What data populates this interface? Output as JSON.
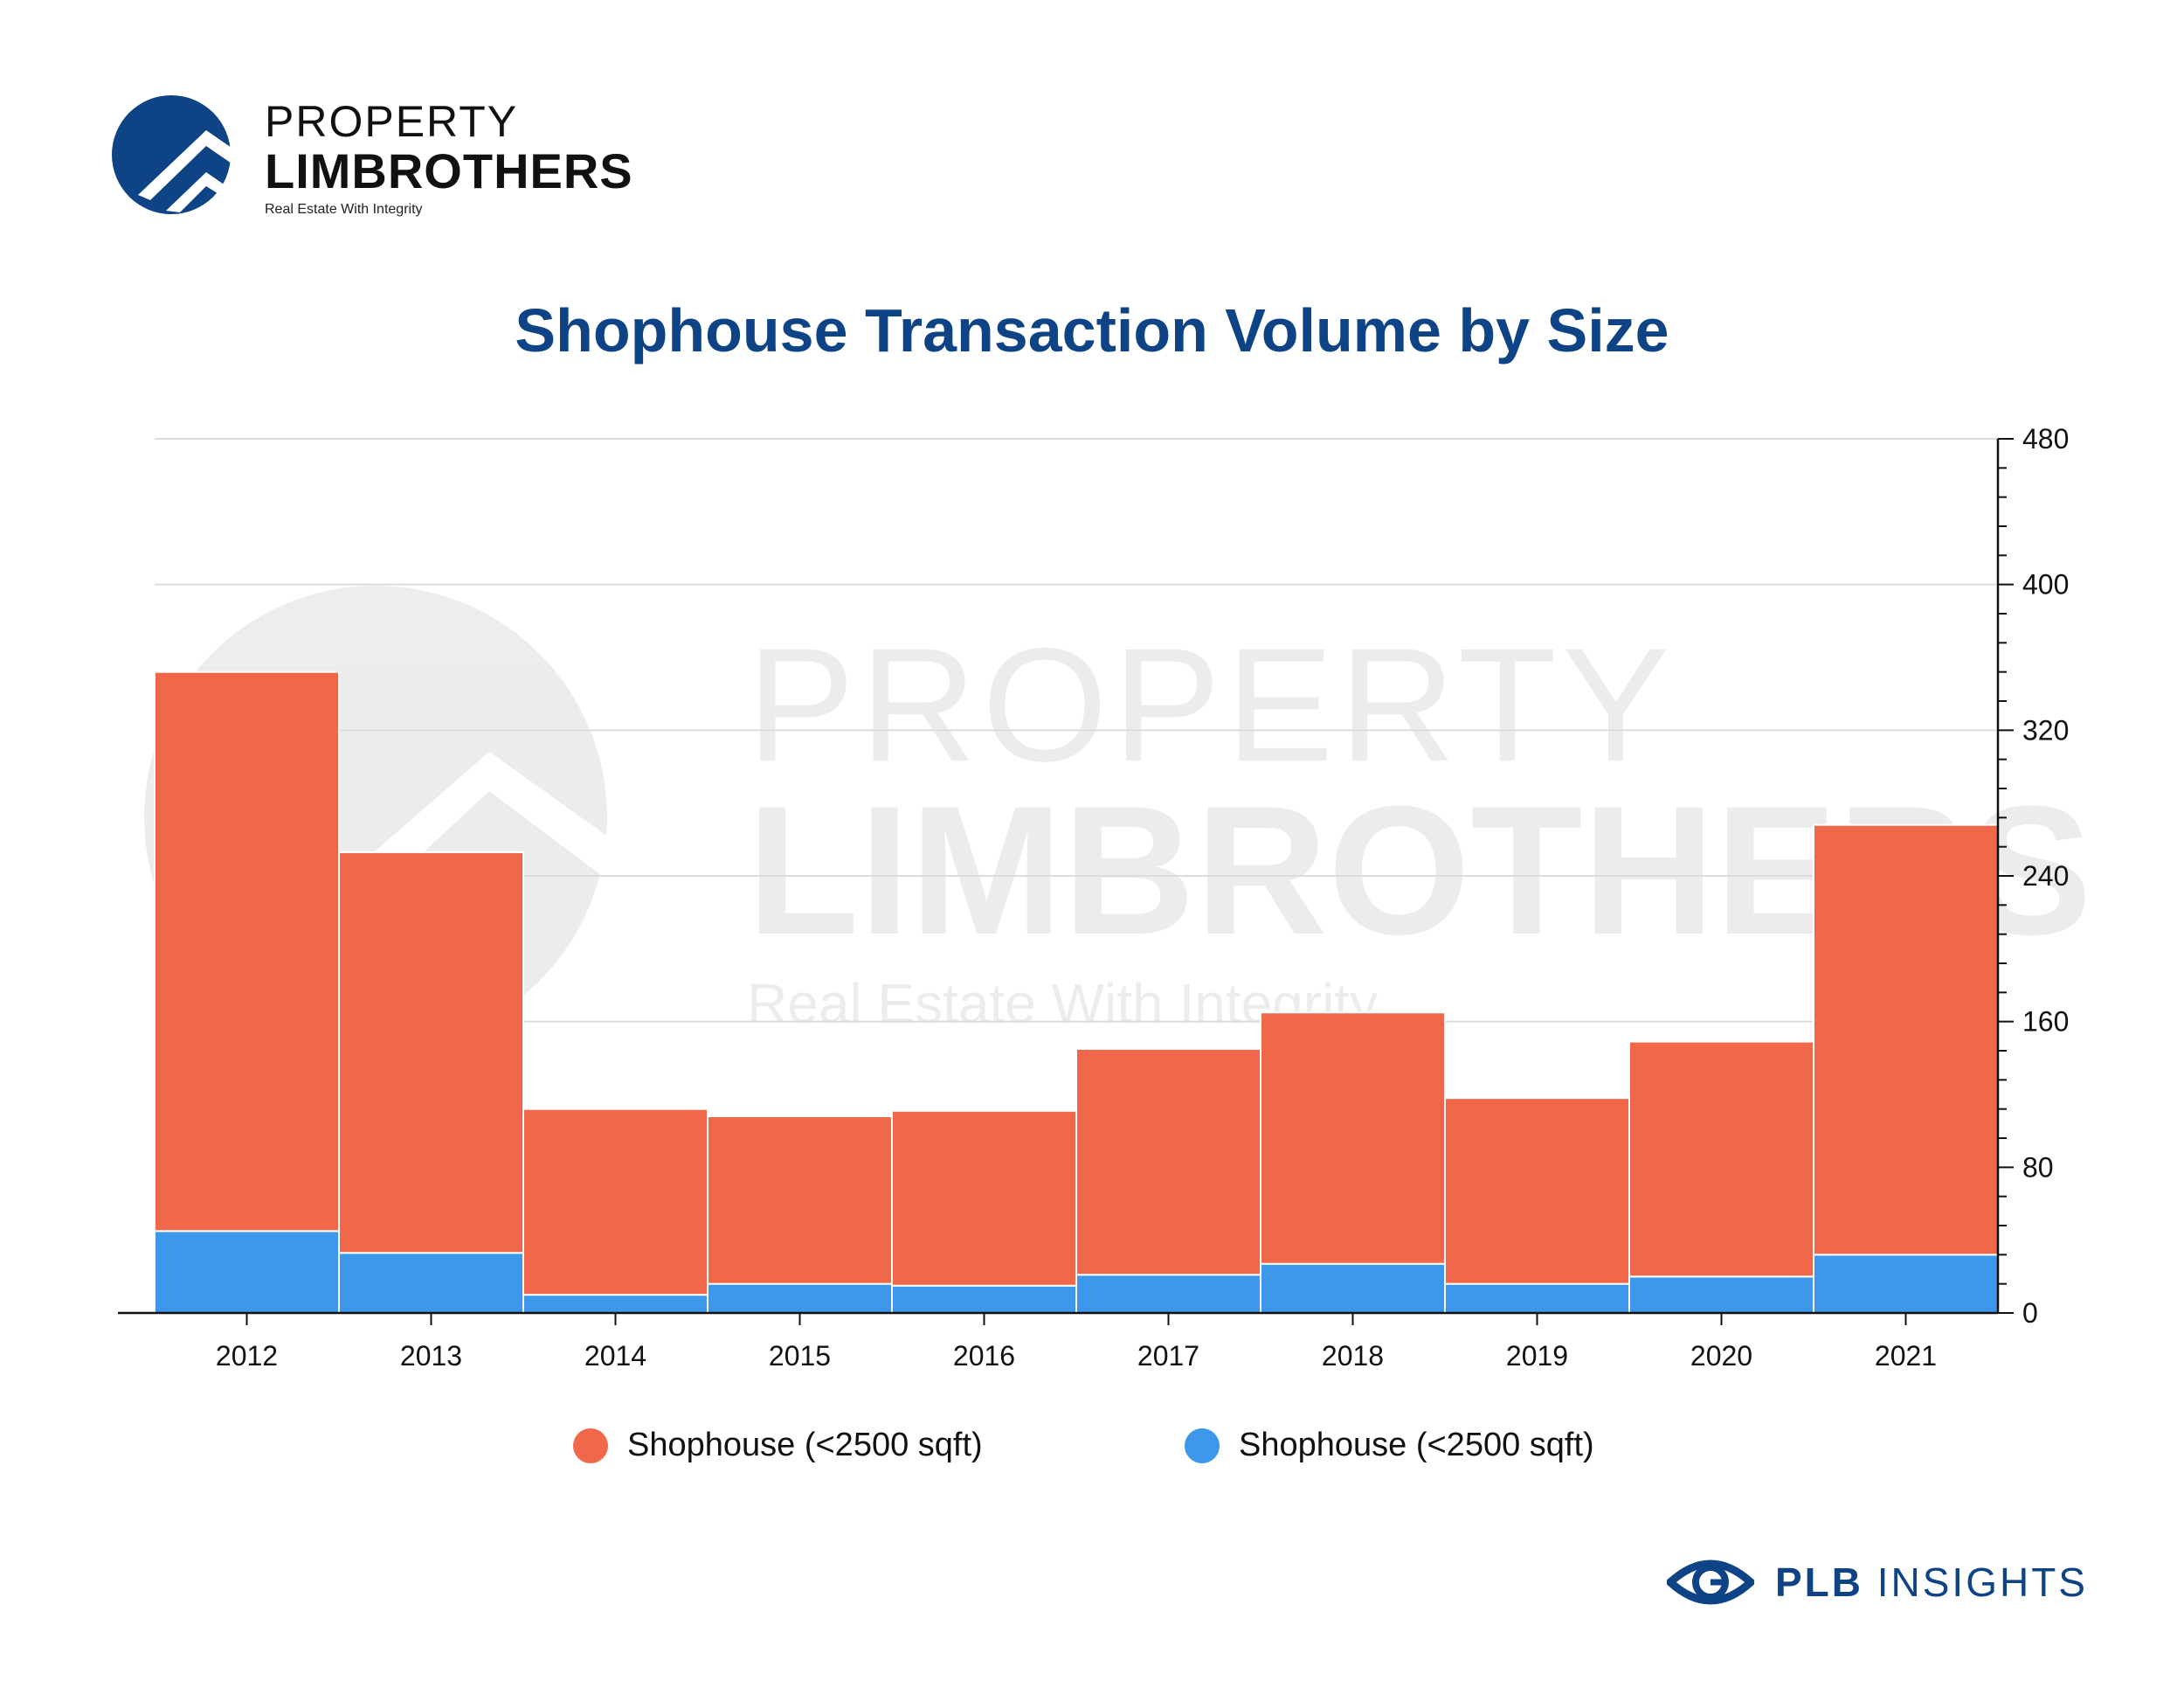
{
  "brand": {
    "line1": "PROPERTY",
    "line2": "LIMBROTHERS",
    "tagline": "Real Estate With Integrity",
    "logo_icon": "roof-chevron-circle-icon",
    "color": "#0e4486"
  },
  "footer": {
    "bold": "PLB",
    "text": "INSIGHTS",
    "icon": "eye-icon"
  },
  "watermark": {
    "line1": "PROPERTY",
    "line2": "LIMBROTHERS",
    "tagline": "Real Estate With Integrity"
  },
  "chart_data": {
    "type": "bar",
    "stacked": true,
    "title": "Shophouse Transaction Volume by Size",
    "xlabel": "",
    "ylabel": "",
    "categories": [
      "2012",
      "2013",
      "2014",
      "2015",
      "2016",
      "2017",
      "2018",
      "2019",
      "2020",
      "2021"
    ],
    "series": [
      {
        "name": "Shophouse (<2500 sqft)",
        "color": "#3d98ec",
        "values": [
          45,
          33,
          10,
          16,
          15,
          21,
          27,
          16,
          20,
          32
        ]
      },
      {
        "name": "Shophouse (<2500 sqft)",
        "color": "#f1674a",
        "values": [
          307,
          220,
          102,
          92,
          96,
          124,
          138,
          102,
          129,
          236
        ]
      }
    ],
    "ylim": [
      0,
      480
    ],
    "yticks": [
      0,
      80,
      160,
      240,
      320,
      400,
      480
    ],
    "y_axis_side": "right",
    "grid": true,
    "legend_position": "bottom"
  }
}
